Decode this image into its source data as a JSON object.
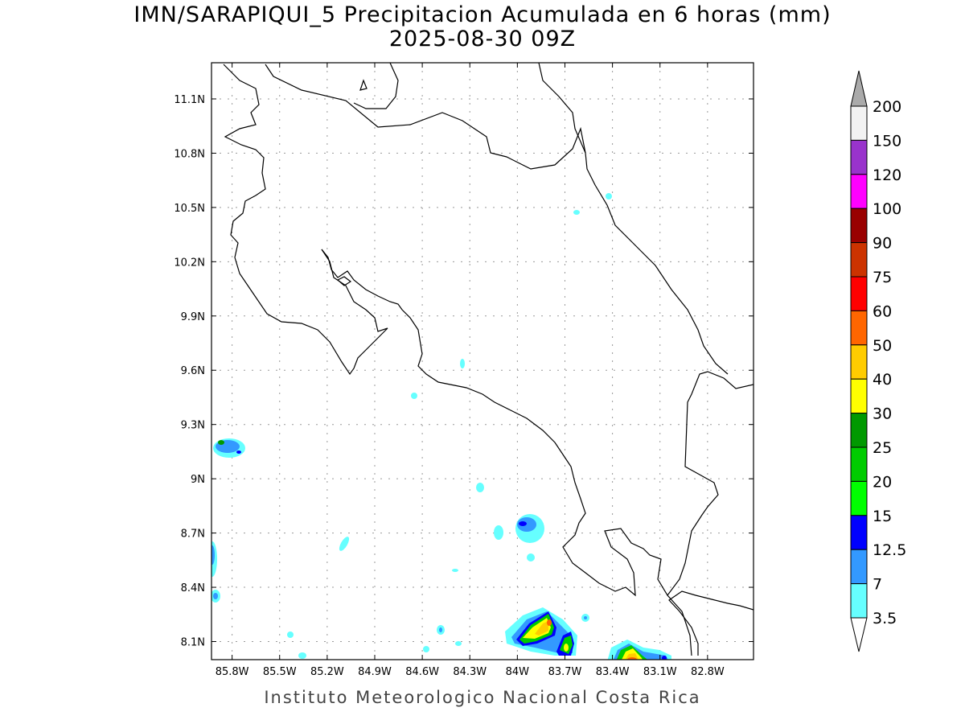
{
  "title": "IMN/SARAPIQUI_5 Precipitacion Acumulada en 6 horas (mm)",
  "subtitle": "2025-08-30 09Z",
  "footer": "Instituto Meteorologico Nacional Costa Rica",
  "map": {
    "lon_range": [
      -85.93,
      -82.51
    ],
    "lat_range": [
      8.0,
      11.3
    ],
    "grid": "dotted",
    "lon_ticks": [
      {
        "value": -85.8,
        "label": "85.8W"
      },
      {
        "value": -85.5,
        "label": "85.5W"
      },
      {
        "value": -85.2,
        "label": "85.2W"
      },
      {
        "value": -84.9,
        "label": "84.9W"
      },
      {
        "value": -84.6,
        "label": "84.6W"
      },
      {
        "value": -84.3,
        "label": "84.3W"
      },
      {
        "value": -84.0,
        "label": "84W"
      },
      {
        "value": -83.7,
        "label": "83.7W"
      },
      {
        "value": -83.4,
        "label": "83.4W"
      },
      {
        "value": -83.1,
        "label": "83.1W"
      },
      {
        "value": -82.8,
        "label": "82.8W"
      }
    ],
    "lat_ticks": [
      {
        "value": 11.1,
        "label": "11.1N"
      },
      {
        "value": 10.8,
        "label": "10.8N"
      },
      {
        "value": 10.5,
        "label": "10.5N"
      },
      {
        "value": 10.2,
        "label": "10.2N"
      },
      {
        "value": 9.9,
        "label": "9.9N"
      },
      {
        "value": 9.6,
        "label": "9.6N"
      },
      {
        "value": 9.3,
        "label": "9.3N"
      },
      {
        "value": 9.0,
        "label": "9N"
      },
      {
        "value": 8.7,
        "label": "8.7N"
      },
      {
        "value": 8.4,
        "label": "8.4N"
      },
      {
        "value": 8.1,
        "label": "8.1N"
      }
    ]
  },
  "colorbar": {
    "labels": [
      "200",
      "150",
      "120",
      "100",
      "90",
      "75",
      "60",
      "50",
      "40",
      "30",
      "25",
      "20",
      "15",
      "12.5",
      "7",
      "3.5"
    ],
    "colors": [
      "#f2f2f2",
      "#9933cc",
      "#ff00ff",
      "#990000",
      "#cc3300",
      "#ff0000",
      "#ff6600",
      "#ffcc00",
      "#ffff00",
      "#009900",
      "#00cc00",
      "#00ff00",
      "#0000ff",
      "#3399ff",
      "#66ffff"
    ],
    "over_color": "#aaaaaa",
    "under_color": "#ffffff"
  }
}
